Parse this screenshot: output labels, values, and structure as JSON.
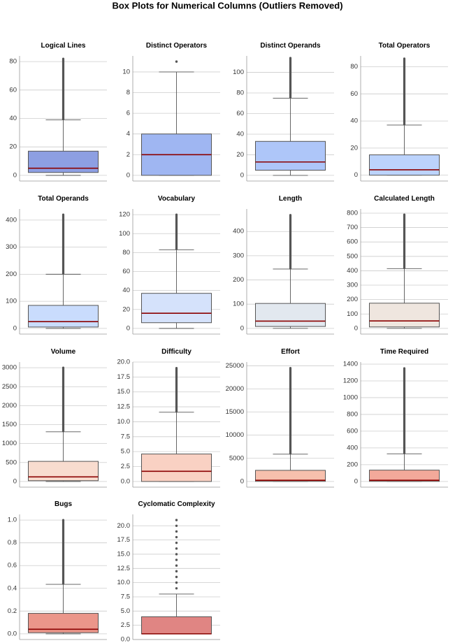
{
  "title": "Box Plots for Numerical Columns (Outliers Removed)",
  "colors": {
    "median": "#8b0000",
    "whisker": "#555555",
    "box_edge": "#555555",
    "grid": "#cccccc",
    "outlier": "#555555"
  },
  "chart_data": [
    {
      "type": "box",
      "title": "Logical Lines",
      "ylim": [
        -4,
        84
      ],
      "yticks": [
        0,
        20,
        40,
        60,
        80
      ],
      "tick_labels": [
        "0",
        "20",
        "40",
        "60",
        "80"
      ],
      "whisker_low": 0,
      "q1": 2,
      "median": 5,
      "q3": 17,
      "whisker_high": 39,
      "outlier_range": [
        39,
        82
      ],
      "outliers_dense": true,
      "outlier_points": [],
      "fill": "#8d9fe2"
    },
    {
      "type": "box",
      "title": "Distinct Operators",
      "ylim": [
        -0.55,
        11.55
      ],
      "yticks": [
        0,
        2,
        4,
        6,
        8,
        10
      ],
      "tick_labels": [
        "0",
        "2",
        "4",
        "6",
        "8",
        "10"
      ],
      "whisker_low": 0,
      "q1": 0,
      "median": 2,
      "q3": 4,
      "whisker_high": 10,
      "outlier_range": null,
      "outliers_dense": false,
      "outlier_points": [
        11
      ],
      "fill": "#9fb6f2"
    },
    {
      "type": "box",
      "title": "Distinct Operands",
      "ylim": [
        -5.5,
        116
      ],
      "yticks": [
        0,
        20,
        40,
        60,
        80,
        100
      ],
      "tick_labels": [
        "0",
        "20",
        "40",
        "60",
        "80",
        "100"
      ],
      "whisker_low": 0,
      "q1": 5,
      "median": 13,
      "q3": 33,
      "whisker_high": 75,
      "outlier_range": [
        75,
        114
      ],
      "outliers_dense": true,
      "outlier_points": [],
      "fill": "#aec6f9"
    },
    {
      "type": "box",
      "title": "Total Operators",
      "ylim": [
        -4.3,
        88
      ],
      "yticks": [
        0,
        20,
        40,
        60,
        80
      ],
      "tick_labels": [
        "0",
        "20",
        "40",
        "60",
        "80"
      ],
      "whisker_low": 0,
      "q1": 0,
      "median": 4,
      "q3": 15,
      "whisker_high": 37,
      "outlier_range": [
        37,
        86
      ],
      "outliers_dense": true,
      "outlier_points": [],
      "fill": "#bcd3fc"
    },
    {
      "type": "box",
      "title": "Total Operands",
      "ylim": [
        -21,
        441
      ],
      "yticks": [
        0,
        100,
        200,
        300,
        400
      ],
      "tick_labels": [
        "0",
        "100",
        "200",
        "300",
        "400"
      ],
      "whisker_low": 0,
      "q1": 5,
      "median": 25,
      "q3": 85,
      "whisker_high": 200,
      "outlier_range": [
        200,
        420
      ],
      "outliers_dense": true,
      "outlier_points": [],
      "fill": "#c9dcfd"
    },
    {
      "type": "box",
      "title": "Vocabulary",
      "ylim": [
        -6,
        126
      ],
      "yticks": [
        0,
        20,
        40,
        60,
        80,
        100,
        120
      ],
      "tick_labels": [
        "0",
        "20",
        "40",
        "60",
        "80",
        "100",
        "120"
      ],
      "whisker_low": 0,
      "q1": 6,
      "median": 16,
      "q3": 37,
      "whisker_high": 83,
      "outlier_range": [
        83,
        120
      ],
      "outliers_dense": true,
      "outlier_points": [],
      "fill": "#d5e2fb"
    },
    {
      "type": "box",
      "title": "Length",
      "ylim": [
        -23.5,
        493
      ],
      "yticks": [
        0,
        100,
        200,
        300,
        400
      ],
      "tick_labels": [
        "0",
        "100",
        "200",
        "300",
        "400"
      ],
      "whisker_low": 0,
      "q1": 8,
      "median": 30,
      "q3": 103,
      "whisker_high": 245,
      "outlier_range": [
        245,
        468
      ],
      "outliers_dense": true,
      "outlier_points": [],
      "fill": "#e2e8ef"
    },
    {
      "type": "box",
      "title": "Calculated Length",
      "ylim": [
        -39.5,
        829
      ],
      "yticks": [
        0,
        100,
        200,
        300,
        400,
        500,
        600,
        700,
        800
      ],
      "tick_labels": [
        "0",
        "100",
        "200",
        "300",
        "400",
        "500",
        "600",
        "700",
        "800"
      ],
      "whisker_low": 0,
      "q1": 10,
      "median": 52,
      "q3": 175,
      "whisker_high": 415,
      "outlier_range": [
        415,
        790
      ],
      "outliers_dense": true,
      "outlier_points": [],
      "fill": "#efe6df"
    },
    {
      "type": "box",
      "title": "Volume",
      "ylim": [
        -150,
        3150
      ],
      "yticks": [
        0,
        500,
        1000,
        1500,
        2000,
        2500,
        3000
      ],
      "tick_labels": [
        "0",
        "500",
        "1000",
        "1500",
        "2000",
        "2500",
        "3000"
      ],
      "whisker_low": 0,
      "q1": 20,
      "median": 120,
      "q3": 530,
      "whisker_high": 1310,
      "outlier_range": [
        1310,
        3000
      ],
      "outliers_dense": true,
      "outlier_points": [],
      "fill": "#f8dccf"
    },
    {
      "type": "box",
      "title": "Difficulty",
      "ylim": [
        -0.95,
        20
      ],
      "yticks": [
        0,
        2.5,
        5,
        7.5,
        10,
        12.5,
        15,
        17.5,
        20
      ],
      "tick_labels": [
        "0.0",
        "2.5",
        "5.0",
        "7.5",
        "10.0",
        "12.5",
        "15.0",
        "17.5",
        "20.0"
      ],
      "whisker_low": 0,
      "q1": 0,
      "median": 1.7,
      "q3": 4.6,
      "whisker_high": 11.6,
      "outlier_range": [
        11.6,
        19
      ],
      "outliers_dense": true,
      "outlier_points": [],
      "fill": "#f9d1c3"
    },
    {
      "type": "box",
      "title": "Effort",
      "ylim": [
        -1230,
        25800
      ],
      "yticks": [
        0,
        5000,
        10000,
        15000,
        20000,
        25000
      ],
      "tick_labels": [
        "0",
        "5000",
        "10000",
        "15000",
        "20000",
        "25000"
      ],
      "whisker_low": 0,
      "q1": 20,
      "median": 250,
      "q3": 2400,
      "whisker_high": 5900,
      "outlier_range": [
        5900,
        24500
      ],
      "outliers_dense": true,
      "outlier_points": [],
      "fill": "#f7c0ad"
    },
    {
      "type": "box",
      "title": "Time Required",
      "ylim": [
        -68,
        1425
      ],
      "yticks": [
        0,
        200,
        400,
        600,
        800,
        1000,
        1200,
        1400
      ],
      "tick_labels": [
        "0",
        "200",
        "400",
        "600",
        "800",
        "1000",
        "1200",
        "1400"
      ],
      "whisker_low": 0,
      "q1": 1,
      "median": 14,
      "q3": 135,
      "whisker_high": 330,
      "outlier_range": [
        330,
        1350
      ],
      "outliers_dense": true,
      "outlier_points": [],
      "fill": "#f3a99a"
    },
    {
      "type": "box",
      "title": "Bugs",
      "ylim": [
        -0.05,
        1.05
      ],
      "yticks": [
        0,
        0.2,
        0.4,
        0.6,
        0.8,
        1.0
      ],
      "tick_labels": [
        "0.0",
        "0.2",
        "0.4",
        "0.6",
        "0.8",
        "1.0"
      ],
      "whisker_low": 0,
      "q1": 0.01,
      "median": 0.04,
      "q3": 0.18,
      "whisker_high": 0.435,
      "outlier_range": [
        0.435,
        1.0
      ],
      "outliers_dense": true,
      "outlier_points": [],
      "fill": "#eb968a"
    },
    {
      "type": "box",
      "title": "Cyclomatic Complexity",
      "ylim": [
        0,
        22
      ],
      "yticks": [
        0,
        2.5,
        5,
        7.5,
        10,
        12.5,
        15,
        17.5,
        20
      ],
      "tick_labels": [
        "0.0",
        "2.5",
        "5.0",
        "7.5",
        "10.0",
        "12.5",
        "15.0",
        "17.5",
        "20.0"
      ],
      "whisker_low": 1,
      "q1": 1,
      "median": 1,
      "q3": 4,
      "whisker_high": 8,
      "outlier_range": null,
      "outliers_dense": false,
      "outlier_points": [
        9,
        10,
        11,
        12,
        13,
        14,
        15,
        16,
        17,
        18,
        19,
        20,
        21
      ],
      "fill": "#e08583"
    }
  ]
}
